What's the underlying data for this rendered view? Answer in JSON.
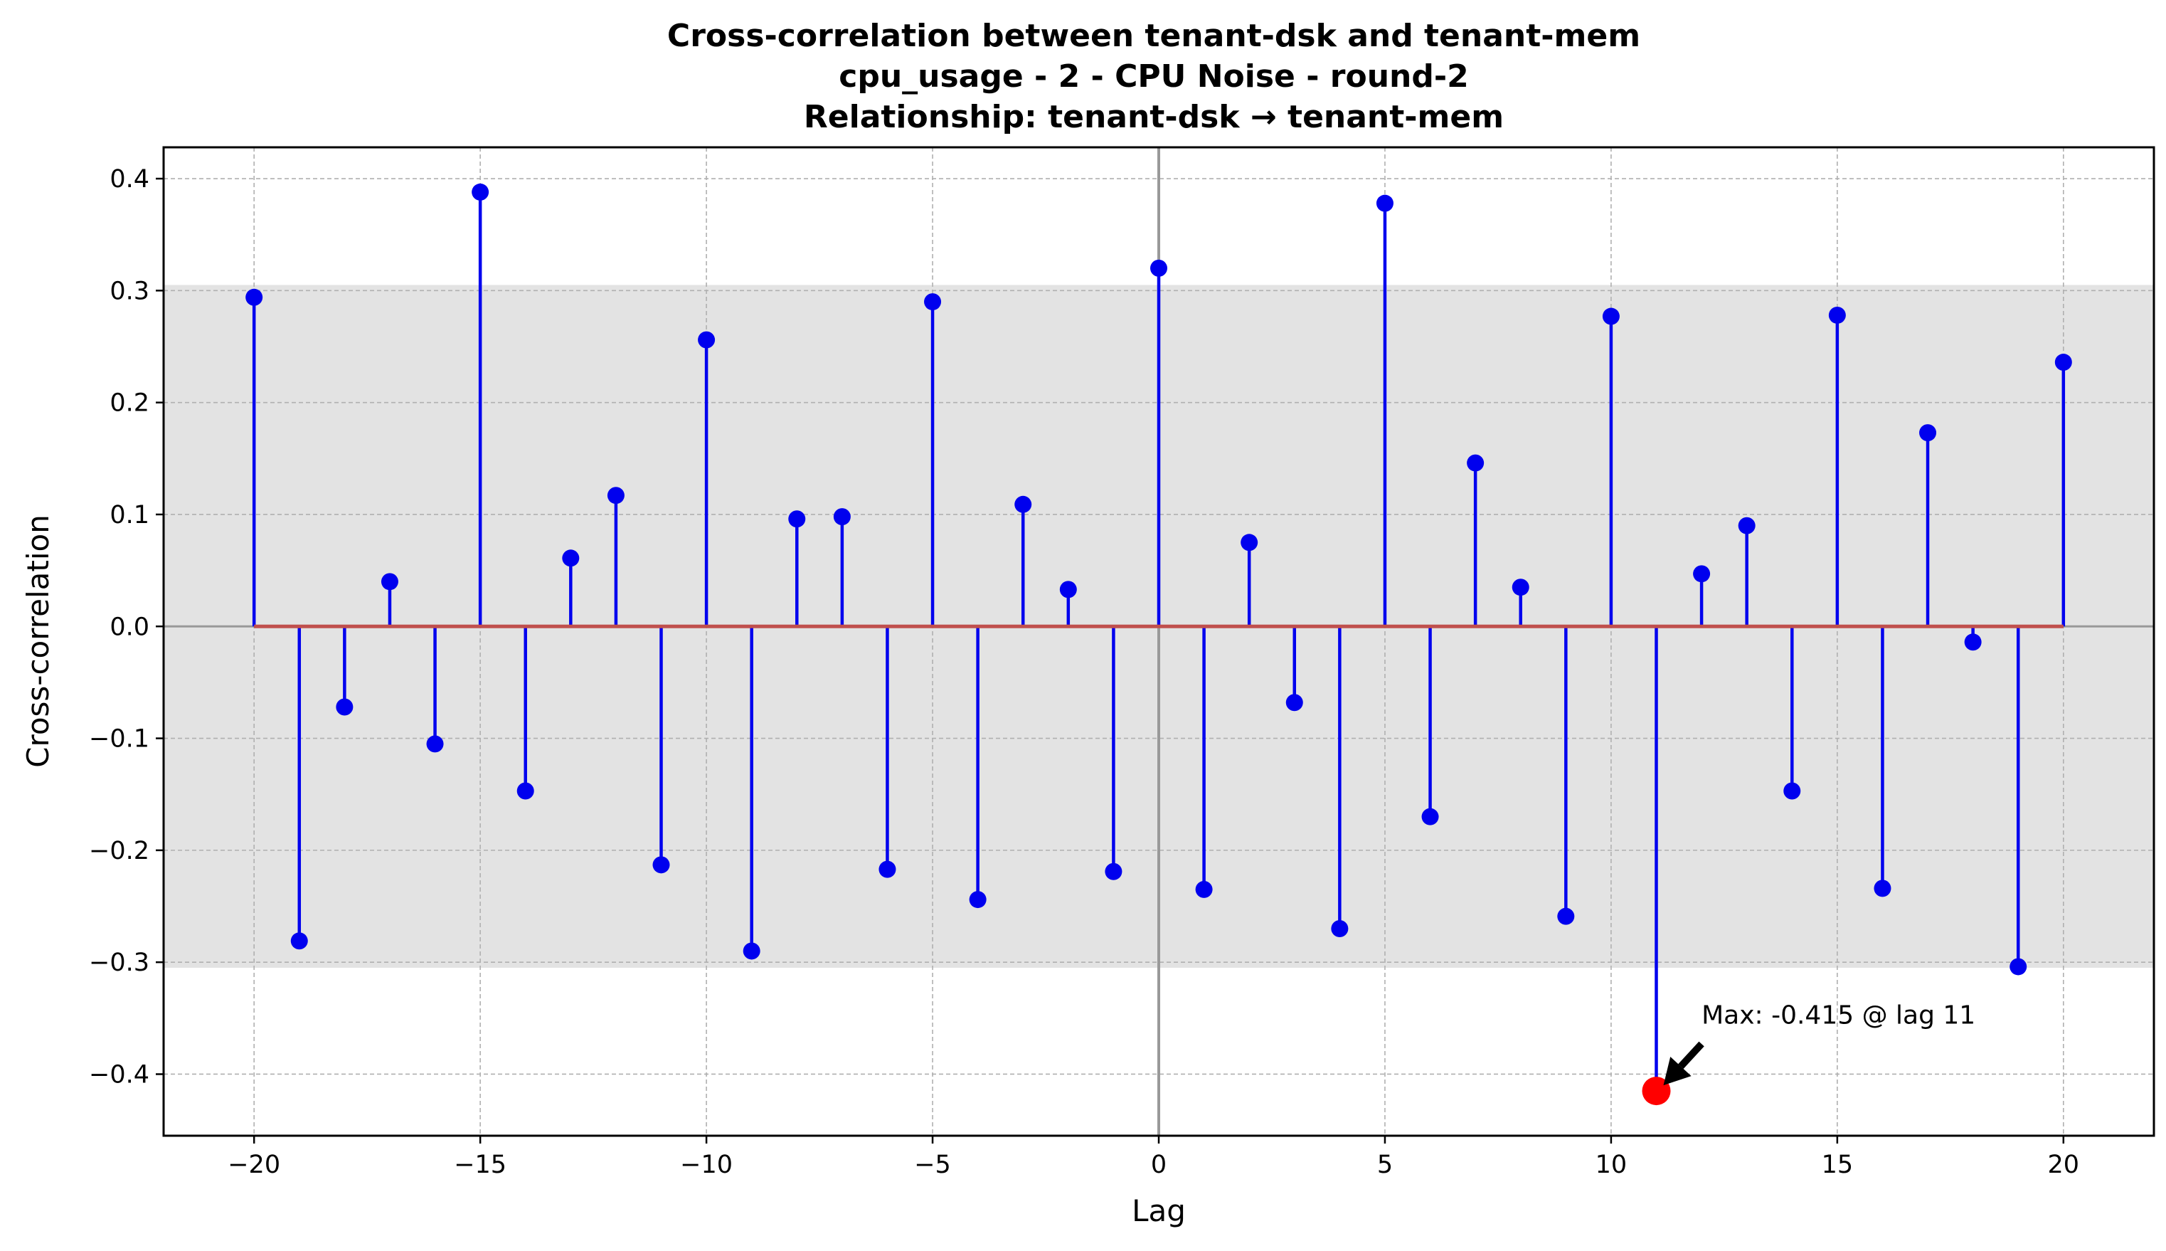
{
  "chart_data": {
    "type": "stem",
    "title_lines": [
      "Cross-correlation between tenant-dsk and tenant-mem",
      "cpu_usage - 2 - CPU Noise - round-2",
      "Relationship: tenant-dsk → tenant-mem"
    ],
    "xlabel": "Lag",
    "ylabel": "Cross-correlation",
    "xlim": [
      -22,
      22
    ],
    "ylim": [
      -0.455,
      0.428
    ],
    "xticks": [
      -20,
      -15,
      -10,
      -5,
      0,
      5,
      10,
      15,
      20
    ],
    "xtick_labels": [
      "−20",
      "−15",
      "−10",
      "−5",
      "0",
      "5",
      "10",
      "15",
      "20"
    ],
    "yticks": [
      0.4,
      0.3,
      0.2,
      0.1,
      0.0,
      -0.1,
      -0.2,
      -0.3,
      -0.4
    ],
    "ytick_labels": [
      "0.4",
      "0.3",
      "0.2",
      "0.1",
      "0.0",
      "−0.1",
      "−0.2",
      "−0.3",
      "−0.4"
    ],
    "grid": true,
    "significance_band": [
      -0.305,
      0.305
    ],
    "x": [
      -20,
      -19,
      -18,
      -17,
      -16,
      -15,
      -14,
      -13,
      -12,
      -11,
      -10,
      -9,
      -8,
      -7,
      -6,
      -5,
      -4,
      -3,
      -2,
      -1,
      0,
      1,
      2,
      3,
      4,
      5,
      6,
      7,
      8,
      9,
      10,
      11,
      12,
      13,
      14,
      15,
      16,
      17,
      18,
      19,
      20
    ],
    "values": [
      0.294,
      -0.281,
      -0.072,
      0.04,
      -0.105,
      0.388,
      -0.147,
      0.061,
      0.117,
      -0.213,
      0.256,
      -0.29,
      0.096,
      0.098,
      -0.217,
      0.29,
      -0.244,
      0.109,
      0.033,
      -0.219,
      0.32,
      -0.235,
      0.075,
      -0.068,
      -0.27,
      0.378,
      -0.17,
      0.146,
      0.035,
      -0.259,
      0.277,
      -0.415,
      0.047,
      0.09,
      -0.147,
      0.278,
      -0.234,
      0.173,
      -0.014,
      -0.304,
      0.236
    ],
    "highlight": {
      "x": 11,
      "value": -0.415
    },
    "annotation": {
      "text": "Max: -0.415 @ lag 11",
      "text_anchor": {
        "x": 12.0,
        "y": -0.355
      }
    },
    "colors": {
      "stem": "#0000ee",
      "marker": "#0000ee",
      "baseline": "#c0504d",
      "highlight": "#ff0000",
      "band": "#e3e3e3",
      "zero_line": "#999999",
      "grid": "#b0b0b0"
    }
  }
}
